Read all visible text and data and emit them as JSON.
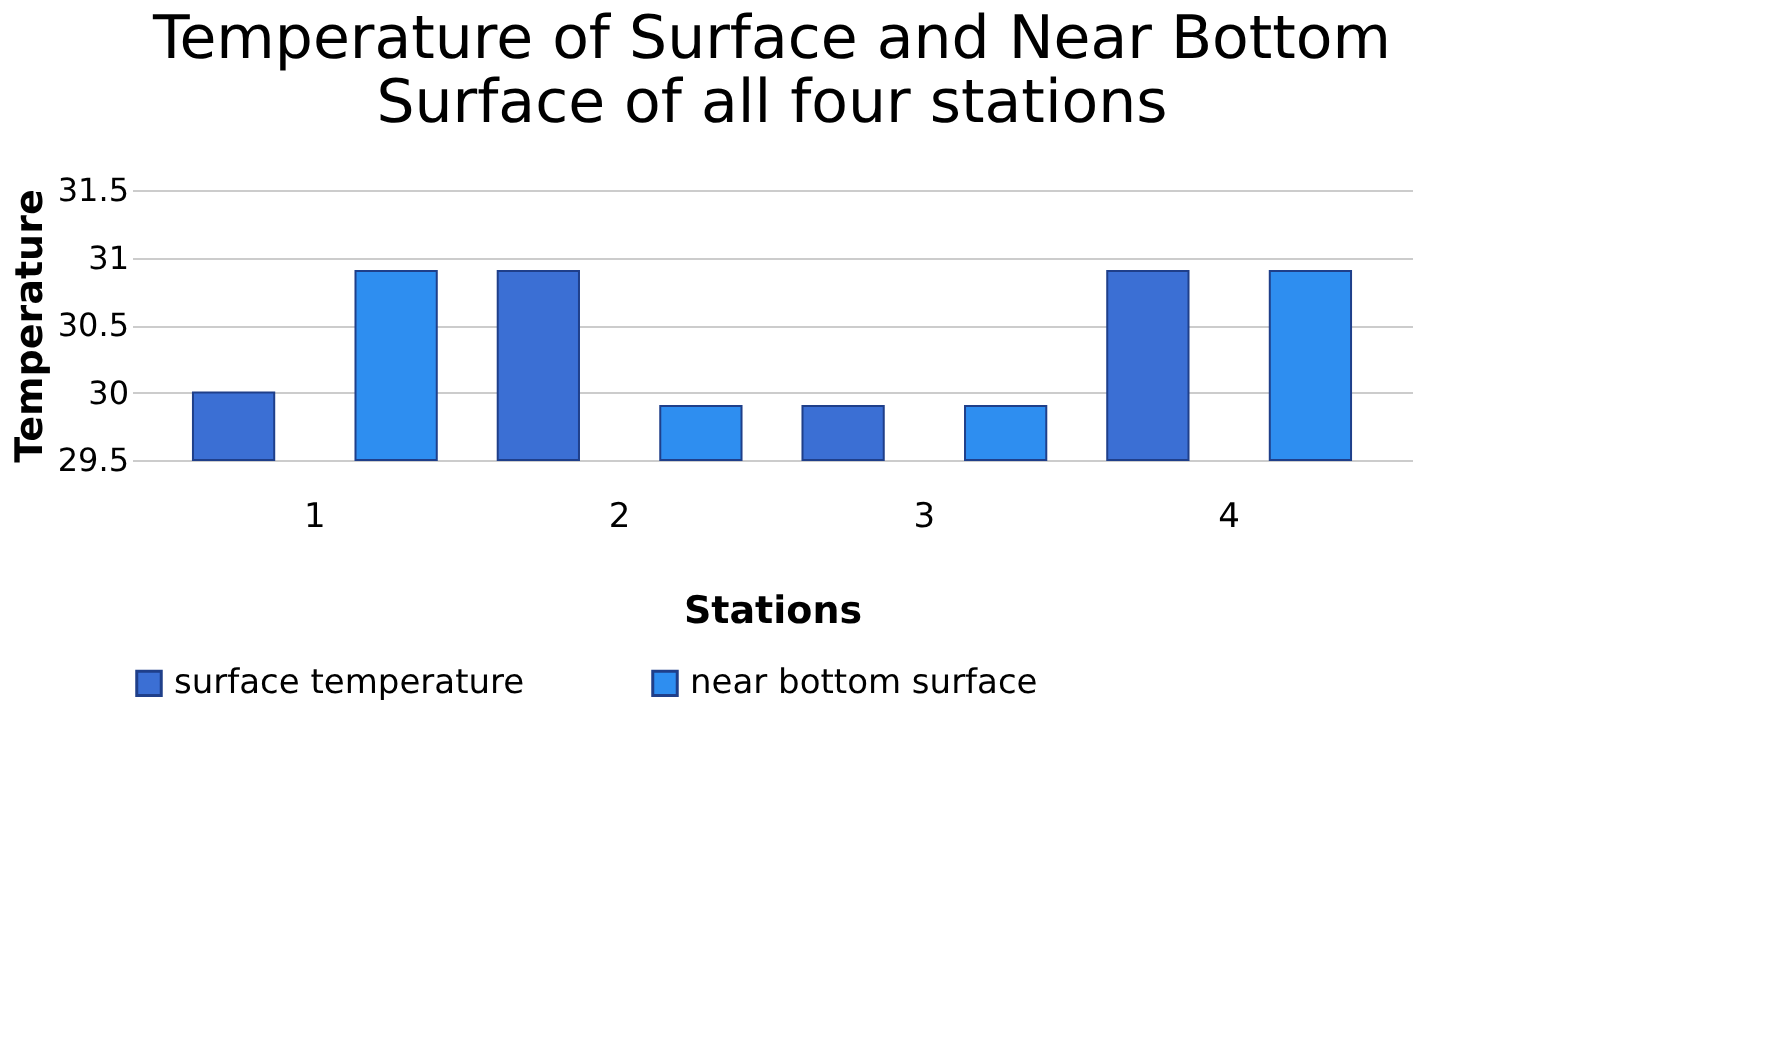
{
  "chart_data": {
    "type": "bar",
    "title": [
      "Temperature of Surface and Near Bottom",
      "Surface of all four stations"
    ],
    "xlabel": "Stations",
    "ylabel": "Temperature",
    "categories": [
      "1",
      "2",
      "3",
      "4"
    ],
    "series": [
      {
        "name": "surface temperature",
        "color": "#3b6fd4",
        "values": [
          30.0,
          30.9,
          29.9,
          30.9
        ]
      },
      {
        "name": "near bottom surface",
        "color": "#2e8ef0",
        "values": [
          30.9,
          29.9,
          29.9,
          30.9
        ]
      }
    ],
    "ylim": [
      29.5,
      31.5
    ],
    "yticks": [
      29.5,
      30,
      30.5,
      31,
      31.5
    ],
    "grid": "y",
    "legend": "bottom"
  }
}
